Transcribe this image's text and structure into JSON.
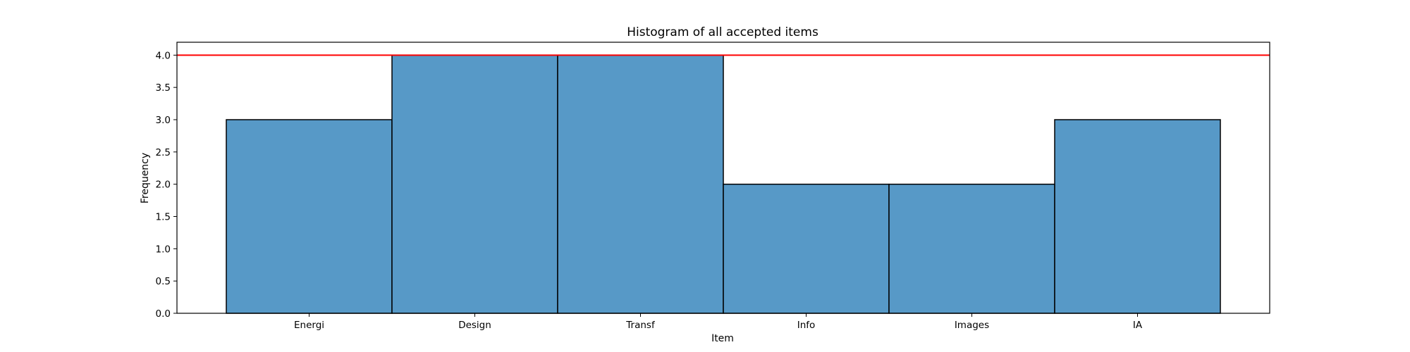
{
  "chart_data": {
    "type": "bar",
    "title": "Histogram of all accepted items",
    "xlabel": "Item",
    "ylabel": "Frequency",
    "categories": [
      "Energi",
      "Design",
      "Transf",
      "Info",
      "Images",
      "IA"
    ],
    "values": [
      3,
      4,
      4,
      2,
      2,
      3
    ],
    "ylim": [
      0,
      4.2
    ],
    "yticks": [
      0.0,
      0.5,
      1.0,
      1.5,
      2.0,
      2.5,
      3.0,
      3.5,
      4.0
    ],
    "ytick_labels": [
      "0.0",
      "0.5",
      "1.0",
      "1.5",
      "2.0",
      "2.5",
      "3.0",
      "3.5",
      "4.0"
    ],
    "reference_line": {
      "y": 4.0,
      "color": "#ff0000"
    },
    "bar_color": "#5799c7",
    "bar_edge_color": "#000000",
    "grid": false,
    "legend": false
  }
}
